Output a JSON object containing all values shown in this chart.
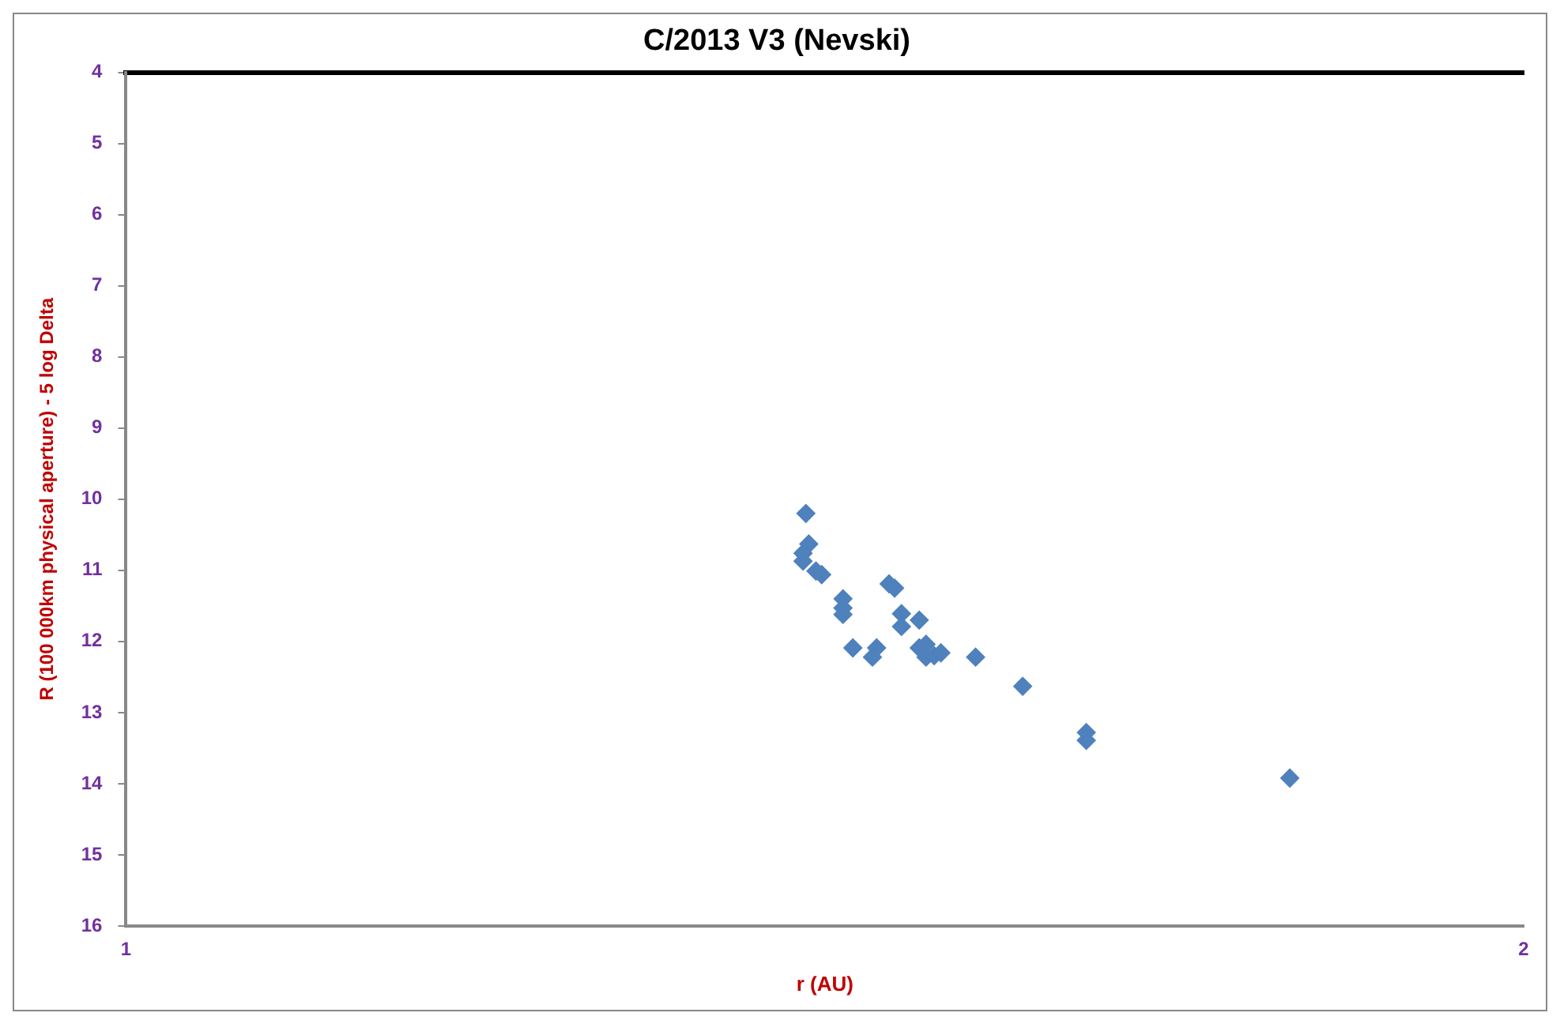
{
  "chart_data": {
    "type": "scatter",
    "title": "C/2013 V3 (Nevski)",
    "xlabel": "r (AU)",
    "ylabel": "R (100 000km physical aperture) - 5 log Delta",
    "log": "x",
    "xlim": [
      1,
      2
    ],
    "xticks": [
      1,
      2
    ],
    "ylim": [
      16,
      4
    ],
    "yticks": [
      4,
      5,
      6,
      7,
      8,
      9,
      10,
      11,
      12,
      13,
      14,
      15,
      16
    ],
    "grid": false,
    "legend": false,
    "marker": "diamond",
    "x": [
      1.401,
      1.403,
      1.399,
      1.399,
      1.408,
      1.412,
      1.46,
      1.464,
      1.427,
      1.427,
      1.427,
      1.469,
      1.469,
      1.482,
      1.434,
      1.451,
      1.448,
      1.482,
      1.487,
      1.487,
      1.493,
      1.498,
      1.524,
      1.56,
      1.61,
      1.61,
      1.781
    ],
    "series": [
      {
        "color": "#4f81bd",
        "values": [
          10.2,
          10.63,
          10.76,
          10.87,
          11.01,
          11.06,
          11.19,
          11.25,
          11.4,
          11.53,
          11.62,
          11.61,
          11.79,
          11.7,
          12.09,
          12.09,
          12.22,
          12.09,
          12.04,
          12.22,
          12.2,
          12.16,
          12.22,
          12.63,
          13.28,
          13.39,
          13.92
        ]
      }
    ]
  }
}
